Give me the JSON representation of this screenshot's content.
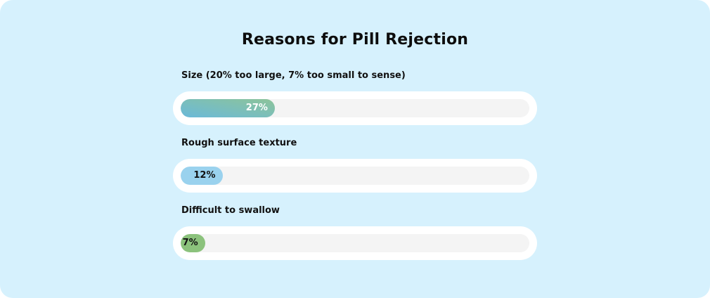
{
  "chart_data": {
    "type": "bar",
    "orientation": "horizontal",
    "title": "Reasons for Pill Rejection",
    "categories": [
      "Size (20% too large, 7% too small to sense)",
      "Rough surface texture",
      "Difficult to swallow"
    ],
    "values": [
      27,
      12,
      7
    ],
    "value_labels": [
      "27%",
      "12%",
      "7%"
    ],
    "unit": "%",
    "xlim": [
      0,
      100
    ],
    "grid": false,
    "legend": "none"
  },
  "colors": {
    "background": "#d6f1fd",
    "track": "#f4f4f4",
    "pill": "#ffffff",
    "bars": [
      {
        "gradient": [
          "#6ab9d9",
          "#8dc49a"
        ],
        "label_color": "#ffffff"
      },
      {
        "solid": "#9ad2ee",
        "label_color": "#111111"
      },
      {
        "solid": "#8bc27c",
        "label_color": "#111111"
      }
    ]
  }
}
